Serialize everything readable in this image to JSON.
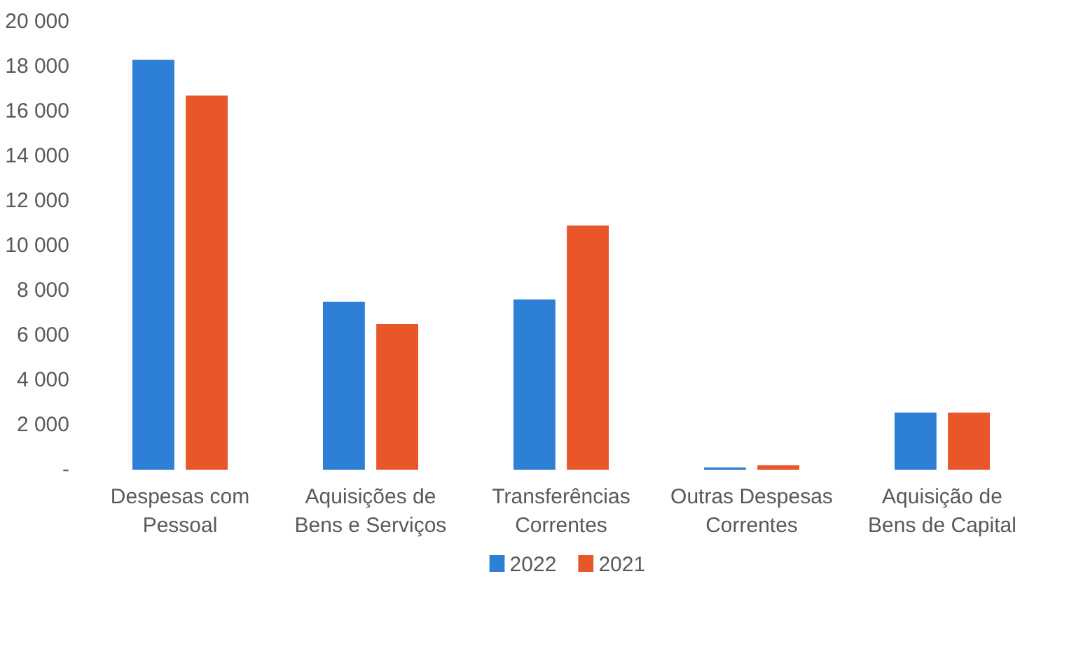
{
  "chart_data": {
    "type": "bar",
    "categories": [
      "Despesas com Pessoal",
      "Aquisições de Bens e Serviços",
      "Transferências Correntes",
      "Outras Despesas Correntes",
      "Aquisição de Bens de Capital"
    ],
    "series": [
      {
        "name": "2022",
        "color": "#2e7fd6",
        "values": [
          18300,
          7500,
          7600,
          100,
          2550
        ]
      },
      {
        "name": "2021",
        "color": "#e8562a",
        "values": [
          16700,
          6500,
          10900,
          200,
          2550
        ]
      }
    ],
    "ylim": [
      0,
      20000
    ],
    "yticks": [
      {
        "value": 0,
        "label": "-"
      },
      {
        "value": 2000,
        "label": "2 000"
      },
      {
        "value": 4000,
        "label": "4 000"
      },
      {
        "value": 6000,
        "label": "6 000"
      },
      {
        "value": 8000,
        "label": "8 000"
      },
      {
        "value": 10000,
        "label": "10 000"
      },
      {
        "value": 12000,
        "label": "12 000"
      },
      {
        "value": 14000,
        "label": "14 000"
      },
      {
        "value": 16000,
        "label": "16 000"
      },
      {
        "value": 18000,
        "label": "18 000"
      },
      {
        "value": 20000,
        "label": "20 000"
      }
    ],
    "grid": false,
    "legend": "bottom"
  }
}
